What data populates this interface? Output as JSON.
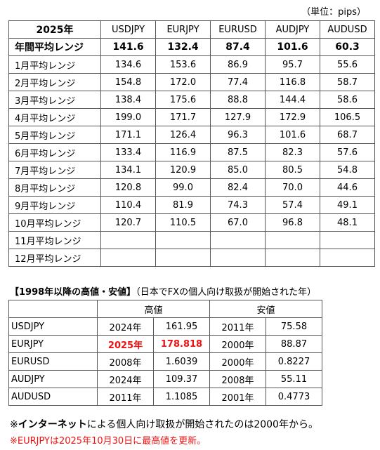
{
  "unit_label": "（単位：pips）",
  "monthly_table": {
    "year_header": "2025年",
    "columns": [
      "USDJPY",
      "EURJPY",
      "EURUSD",
      "AUDJPY",
      "AUDUSD"
    ],
    "annual": {
      "label": "年間平均レンジ",
      "values": [
        "141.6",
        "132.4",
        "87.4",
        "101.6",
        "60.3"
      ]
    },
    "rows": [
      {
        "label": "1月平均レンジ",
        "values": [
          "134.6",
          "153.6",
          "86.9",
          "95.7",
          "55.6"
        ]
      },
      {
        "label": "2月平均レンジ",
        "values": [
          "154.8",
          "172.0",
          "77.4",
          "116.8",
          "58.7"
        ]
      },
      {
        "label": "3月平均レンジ",
        "values": [
          "138.4",
          "175.6",
          "88.8",
          "144.4",
          "58.6"
        ]
      },
      {
        "label": "4月平均レンジ",
        "values": [
          "199.0",
          "171.7",
          "127.9",
          "172.9",
          "106.5"
        ]
      },
      {
        "label": "5月平均レンジ",
        "values": [
          "171.1",
          "126.4",
          "96.3",
          "101.6",
          "68.7"
        ]
      },
      {
        "label": "6月平均レンジ",
        "values": [
          "133.4",
          "116.9",
          "87.5",
          "82.3",
          "57.6"
        ]
      },
      {
        "label": "7月平均レンジ",
        "values": [
          "134.1",
          "120.9",
          "85.0",
          "80.5",
          "54.8"
        ]
      },
      {
        "label": "8月平均レンジ",
        "values": [
          "120.8",
          "99.0",
          "82.4",
          "70.0",
          "44.6"
        ]
      },
      {
        "label": "9月平均レンジ",
        "values": [
          "110.4",
          "81.9",
          "74.3",
          "57.4",
          "49.1"
        ]
      },
      {
        "label": "10月平均レンジ",
        "values": [
          "120.7",
          "110.5",
          "67.0",
          "96.8",
          "48.1"
        ]
      },
      {
        "label": "11月平均レンジ",
        "values": [
          "",
          "",
          "",
          "",
          ""
        ]
      },
      {
        "label": "12月平均レンジ",
        "values": [
          "",
          "",
          "",
          "",
          ""
        ]
      }
    ]
  },
  "section": {
    "title": "【1998年以降の高値・安値】",
    "subtitle": "（日本でFXの個人向け取扱が開始された年）"
  },
  "highlow_table": {
    "high_header": "高値",
    "low_header": "安値",
    "rows": [
      {
        "pair": "USDJPY",
        "high_year": "2024年",
        "high": "161.95",
        "low_year": "2011年",
        "low": "75.58"
      },
      {
        "pair": "EURJPY",
        "high_year": "2025年",
        "high": "178.818",
        "low_year": "2000年",
        "low": "88.87",
        "highlight": true
      },
      {
        "pair": "EURUSD",
        "high_year": "2008年",
        "high": "1.6039",
        "low_year": "2000年",
        "low": "0.8227"
      },
      {
        "pair": "AUDJPY",
        "high_year": "2024年",
        "high": "109.37",
        "low_year": "2008年",
        "low": "55.11"
      },
      {
        "pair": "AUDUSD",
        "high_year": "2011年",
        "high": "1.1085",
        "low_year": "2001年",
        "low": "0.4773"
      }
    ]
  },
  "notes": {
    "note1_prefix": "※",
    "note1_bold": "インターネット",
    "note1_rest": "による個人向け取扱が開始されたのは2000年から。",
    "note2": "※EURJPYは2025年10月30日に最高値を更新。",
    "highlight_color": "#ee1111"
  }
}
